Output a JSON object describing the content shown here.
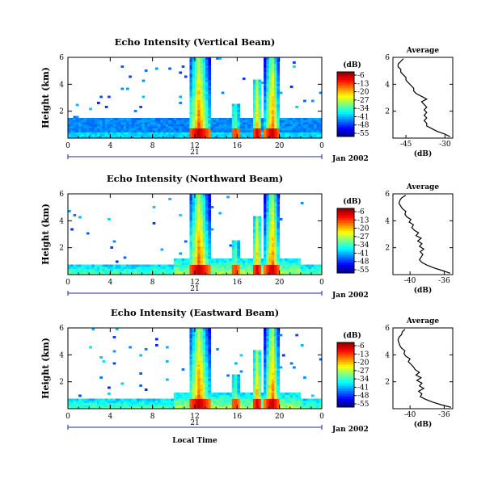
{
  "figure": {
    "xlabel": "Local Time",
    "date_label": "Jan 2002",
    "day_label": "21",
    "colorbar_unit": "(dB)",
    "colorbar_ticks": [
      "-6",
      "-13",
      "-20",
      "-27",
      "-34",
      "-41",
      "-48",
      "-55"
    ],
    "colormap": [
      "#00007f",
      "#0000ff",
      "#007fff",
      "#00ffff",
      "#7fff7f",
      "#ffff00",
      "#ff7f00",
      "#ff0000",
      "#7f0000"
    ]
  },
  "chart_data": [
    {
      "type": "heatmap",
      "title": "Echo Intensity (Vertical Beam)",
      "ylabel": "Height (km)",
      "xlim": [
        0,
        24
      ],
      "ylim": [
        0,
        6
      ],
      "x_ticks": [
        "0",
        "4",
        "8",
        "12",
        "16",
        "20",
        "0"
      ],
      "y_ticks": [
        "2",
        "4",
        "6"
      ],
      "color_range_db": [
        -55,
        -6
      ],
      "profile": {
        "title": "Average",
        "xlabel": "(dB)",
        "x_ticks": [
          "-45",
          "-30"
        ],
        "xlim": [
          -50,
          -27
        ],
        "heights": [
          0.1,
          0.3,
          0.5,
          0.7,
          0.9,
          1.1,
          1.3,
          1.5,
          1.7,
          1.9,
          2.1,
          2.3,
          2.5,
          2.7,
          2.9,
          3.1,
          3.3,
          3.5,
          3.7,
          3.9,
          4.1,
          4.3,
          4.5,
          4.7,
          4.9,
          5.1,
          5.3,
          5.5,
          5.7,
          5.9
        ],
        "values": [
          -28,
          -30,
          -33,
          -35,
          -37,
          -37,
          -38,
          -37,
          -38,
          -37,
          -38,
          -37,
          -38,
          -39,
          -37,
          -39,
          -41,
          -42,
          -42,
          -43,
          -44,
          -45,
          -45,
          -46,
          -47,
          -47,
          -48,
          -48,
          -47,
          -46
        ]
      }
    },
    {
      "type": "heatmap",
      "title": "Echo Intensity (Northward Beam)",
      "ylabel": "Height (km)",
      "xlim": [
        0,
        24
      ],
      "ylim": [
        0,
        6
      ],
      "x_ticks": [
        "0",
        "4",
        "8",
        "12",
        "16",
        "20",
        "0"
      ],
      "y_ticks": [
        "2",
        "4",
        "6"
      ],
      "color_range_db": [
        -55,
        -6
      ],
      "profile": {
        "title": "Average",
        "xlabel": "(dB)",
        "x_ticks": [
          "-40",
          "-36"
        ],
        "xlim": [
          -42,
          -35
        ],
        "heights": [
          0.1,
          0.3,
          0.5,
          0.7,
          0.9,
          1.1,
          1.3,
          1.5,
          1.7,
          1.9,
          2.1,
          2.3,
          2.5,
          2.7,
          2.9,
          3.1,
          3.3,
          3.5,
          3.7,
          3.9,
          4.1,
          4.3,
          4.5,
          4.7,
          4.9,
          5.1,
          5.3,
          5.5,
          5.7,
          5.9
        ],
        "values": [
          -35.3,
          -36.2,
          -37.2,
          -38.0,
          -38.6,
          -38.9,
          -38.7,
          -38.5,
          -38.8,
          -38.4,
          -38.9,
          -38.6,
          -39.1,
          -38.7,
          -39.3,
          -39.0,
          -39.5,
          -39.8,
          -39.6,
          -40.1,
          -39.9,
          -40.4,
          -40.6,
          -40.5,
          -40.9,
          -41.1,
          -41.3,
          -41.2,
          -41.0,
          -40.5
        ]
      }
    },
    {
      "type": "heatmap",
      "title": "Echo Intensity (Eastward Beam)",
      "ylabel": "Height (km)",
      "xlim": [
        0,
        24
      ],
      "ylim": [
        0,
        6
      ],
      "x_ticks": [
        "0",
        "4",
        "8",
        "12",
        "16",
        "20",
        "0"
      ],
      "y_ticks": [
        "2",
        "4",
        "6"
      ],
      "color_range_db": [
        -55,
        -6
      ],
      "profile": {
        "title": "Average",
        "xlabel": "(dB)",
        "x_ticks": [
          "-40",
          "-36"
        ],
        "xlim": [
          -42,
          -35
        ],
        "heights": [
          0.1,
          0.3,
          0.5,
          0.7,
          0.9,
          1.1,
          1.3,
          1.5,
          1.7,
          1.9,
          2.1,
          2.3,
          2.5,
          2.7,
          2.9,
          3.1,
          3.3,
          3.5,
          3.7,
          3.9,
          4.1,
          4.3,
          4.5,
          4.7,
          4.9,
          5.1,
          5.3,
          5.5,
          5.7,
          5.9
        ],
        "values": [
          -35.2,
          -36.4,
          -37.4,
          -38.2,
          -38.8,
          -38.6,
          -39.0,
          -38.4,
          -38.9,
          -38.6,
          -39.2,
          -38.7,
          -39.3,
          -38.9,
          -39.4,
          -39.6,
          -39.9,
          -40.2,
          -40.0,
          -40.5,
          -40.7,
          -40.6,
          -41.0,
          -41.2,
          -41.3,
          -41.4,
          -41.3,
          -41.0,
          -40.9,
          -40.6
        ]
      }
    }
  ]
}
